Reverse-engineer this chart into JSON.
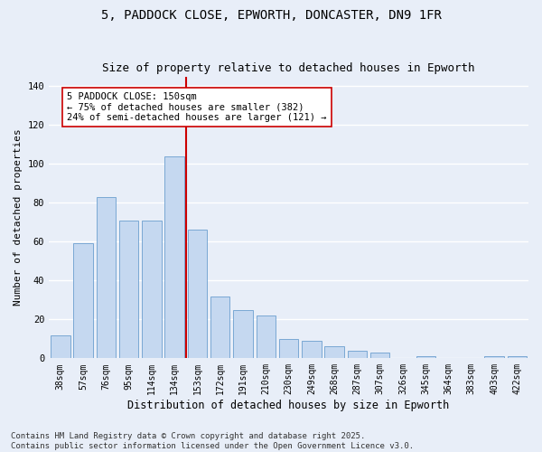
{
  "title1": "5, PADDOCK CLOSE, EPWORTH, DONCASTER, DN9 1FR",
  "title2": "Size of property relative to detached houses in Epworth",
  "xlabel": "Distribution of detached houses by size in Epworth",
  "ylabel": "Number of detached properties",
  "categories": [
    "38sqm",
    "57sqm",
    "76sqm",
    "95sqm",
    "114sqm",
    "134sqm",
    "153sqm",
    "172sqm",
    "191sqm",
    "210sqm",
    "230sqm",
    "249sqm",
    "268sqm",
    "287sqm",
    "307sqm",
    "326sqm",
    "345sqm",
    "364sqm",
    "383sqm",
    "403sqm",
    "422sqm"
  ],
  "values": [
    12,
    59,
    83,
    71,
    71,
    104,
    66,
    32,
    25,
    22,
    10,
    9,
    6,
    4,
    3,
    0,
    1,
    0,
    0,
    1,
    1
  ],
  "bar_color": "#c5d8f0",
  "bar_edgecolor": "#7aa8d4",
  "vline_color": "#cc0000",
  "annotation_text": "5 PADDOCK CLOSE: 150sqm\n← 75% of detached houses are smaller (382)\n24% of semi-detached houses are larger (121) →",
  "annotation_box_color": "#ffffff",
  "annotation_box_edgecolor": "#cc0000",
  "ylim": [
    0,
    145
  ],
  "yticks": [
    0,
    20,
    40,
    60,
    80,
    100,
    120,
    140
  ],
  "background_color": "#e8eef8",
  "footer_text": "Contains HM Land Registry data © Crown copyright and database right 2025.\nContains public sector information licensed under the Open Government Licence v3.0.",
  "grid_color": "#ffffff",
  "title_fontsize": 10,
  "subtitle_fontsize": 9,
  "tick_fontsize": 7,
  "ylabel_fontsize": 8,
  "xlabel_fontsize": 8.5,
  "annotation_fontsize": 7.5,
  "footer_fontsize": 6.5
}
